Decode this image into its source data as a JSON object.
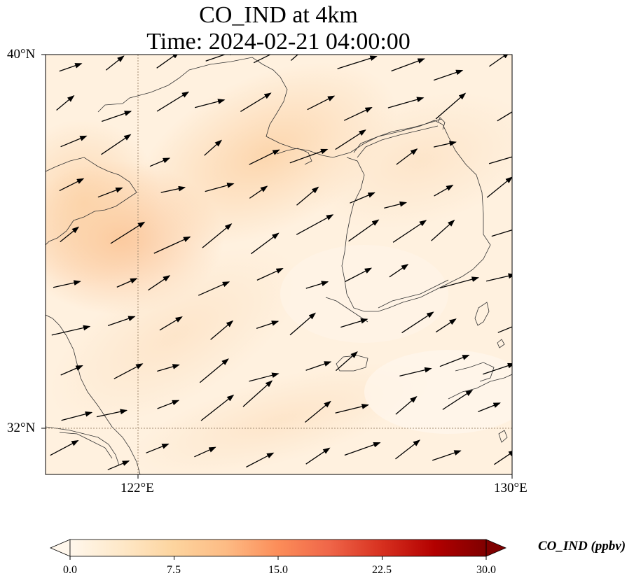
{
  "title": {
    "line1": "CO_IND at 4km",
    "line2": "Time: 2024-02-21 04:00:00"
  },
  "map": {
    "lat_labels": [
      "40°N",
      "32°N"
    ],
    "lon_labels": [
      "122°E",
      "130°E"
    ],
    "extent": {
      "lon_min": 120,
      "lon_max": 130,
      "lat_min": 31,
      "lat_max": 40
    },
    "gridlines": {
      "lon": 122,
      "lat": 32,
      "style": "dotted"
    }
  },
  "colorbar": {
    "label": "CO_IND (ppbv)",
    "ticks": [
      "0.0",
      "7.5",
      "15.0",
      "22.5",
      "30.0"
    ],
    "colormap": "OrRd",
    "extend": "both",
    "colors": [
      "#fff7ec",
      "#fee8c8",
      "#fdd49e",
      "#fdbb84",
      "#fc8d59",
      "#ef6548",
      "#d7301f",
      "#b30000",
      "#7f0000"
    ]
  },
  "field": {
    "description_colors": {
      "low": "#fff3e3",
      "mid": "#fde0bf",
      "high": "#fbc79c"
    }
  }
}
